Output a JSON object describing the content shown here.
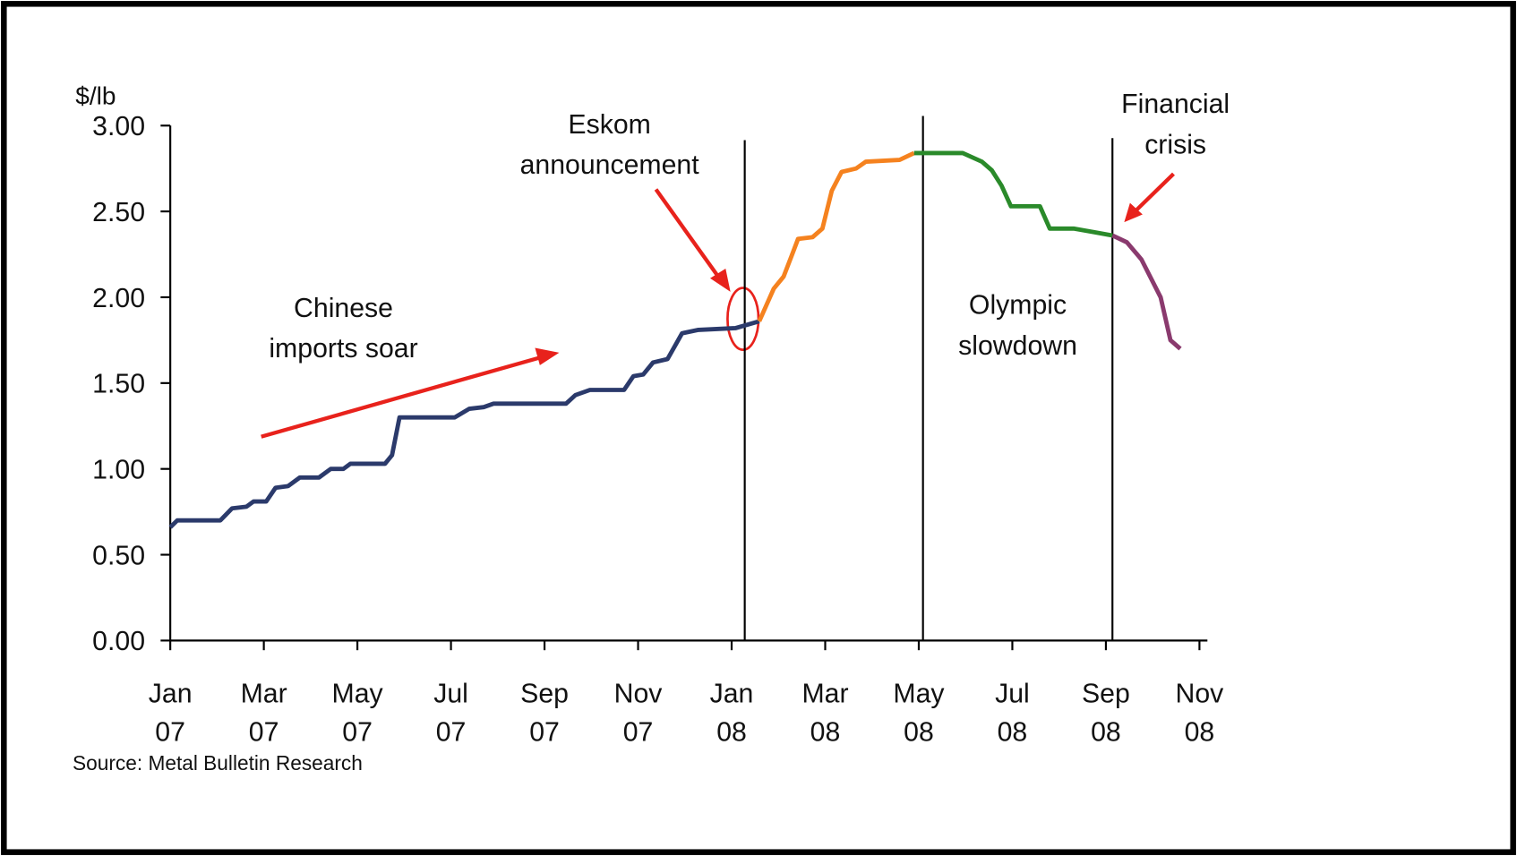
{
  "chart_data": {
    "type": "line",
    "y_label": "$/lb",
    "source": "Source: Metal Bulletin Research",
    "xlim": [
      0,
      22.17
    ],
    "ylim": [
      0,
      3
    ],
    "xticks": [
      {
        "value": 0,
        "label": "Jan 07"
      },
      {
        "value": 2,
        "label": "Mar 07"
      },
      {
        "value": 4,
        "label": "May 07"
      },
      {
        "value": 6,
        "label": "Jul 07"
      },
      {
        "value": 8,
        "label": "Sep 07"
      },
      {
        "value": 10,
        "label": "Nov 07"
      },
      {
        "value": 12,
        "label": "Jan 08"
      },
      {
        "value": 14,
        "label": "Mar 08"
      },
      {
        "value": 16,
        "label": "May 08"
      },
      {
        "value": 18,
        "label": "Jul 08"
      },
      {
        "value": 20,
        "label": "Sep 08"
      },
      {
        "value": 22,
        "label": "Nov 08"
      }
    ],
    "yticks": [
      {
        "value": 0,
        "label": "0.00"
      },
      {
        "value": 0.5,
        "label": "0.50"
      },
      {
        "value": 1,
        "label": "1.00"
      },
      {
        "value": 1.5,
        "label": "1.50"
      },
      {
        "value": 2,
        "label": "2.00"
      },
      {
        "value": 2.5,
        "label": "2.50"
      },
      {
        "value": 3,
        "label": "3.00"
      }
    ],
    "series": [
      {
        "color": "#2b3a6b",
        "x": [
          0,
          0.15,
          1.07,
          1.32,
          1.63,
          1.78,
          2.05,
          2.25,
          2.52,
          2.77,
          3.18,
          3.43,
          3.7,
          3.85,
          4.59,
          4.74,
          4.9,
          6.08,
          6.39,
          6.7,
          6.91,
          8.46,
          8.66,
          8.97,
          9.7,
          9.9,
          10.11,
          10.32,
          10.63,
          10.94,
          11.29,
          12.08,
          12.59
        ],
        "values": [
          0.66,
          0.7,
          0.7,
          0.77,
          0.78,
          0.81,
          0.81,
          0.89,
          0.9,
          0.95,
          0.95,
          1.0,
          1.0,
          1.03,
          1.03,
          1.08,
          1.3,
          1.3,
          1.35,
          1.36,
          1.38,
          1.38,
          1.43,
          1.46,
          1.46,
          1.54,
          1.55,
          1.62,
          1.64,
          1.79,
          1.81,
          1.82,
          1.86
        ]
      },
      {
        "color": "#f5821f",
        "x": [
          12.59,
          12.9,
          13.11,
          13.28,
          13.42,
          13.73,
          13.94,
          14.14,
          14.35,
          14.66,
          14.87,
          15.59,
          15.9
        ],
        "values": [
          1.86,
          2.05,
          2.12,
          2.24,
          2.34,
          2.35,
          2.4,
          2.62,
          2.73,
          2.75,
          2.79,
          2.8,
          2.84
        ]
      },
      {
        "color": "#2a8a2a",
        "x": [
          15.9,
          16.94,
          17.35,
          17.56,
          17.77,
          17.97,
          18.59,
          18.8,
          19.31,
          19.73,
          20.14
        ],
        "values": [
          2.84,
          2.84,
          2.79,
          2.74,
          2.65,
          2.53,
          2.53,
          2.4,
          2.4,
          2.38,
          2.36
        ]
      },
      {
        "color": "#8a3a6e",
        "x": [
          20.14,
          20.45,
          20.76,
          21.17,
          21.38,
          21.59
        ],
        "values": [
          2.36,
          2.32,
          2.22,
          2.0,
          1.75,
          1.7
        ]
      }
    ],
    "events": [
      {
        "x": 12.28
      },
      {
        "x": 16.09
      },
      {
        "x": 20.14
      }
    ],
    "annotations": [
      {
        "lines": [
          "Eskom",
          "announcement"
        ]
      },
      {
        "lines": [
          "Chinese",
          "imports soar"
        ]
      },
      {
        "lines": [
          "Olympic",
          "slowdown"
        ]
      },
      {
        "lines": [
          "Financial",
          "crisis"
        ]
      }
    ]
  }
}
